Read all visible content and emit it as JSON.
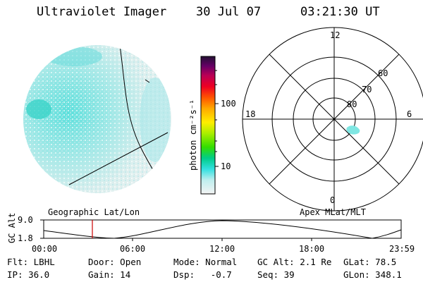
{
  "header": {
    "title": "Ultraviolet Imager",
    "date": "30 Jul 07",
    "time": "03:21:30 UT"
  },
  "colorbar": {
    "unit_label": "photon cm⁻²s⁻¹",
    "ticks": [
      "100",
      "10"
    ]
  },
  "polar": {
    "mlt_labels": [
      "12",
      "18",
      "6",
      "0"
    ],
    "lat_labels": [
      "60",
      "70",
      "80"
    ]
  },
  "map_labels": {
    "left": "Geographic Lat/Lon",
    "right": "Apex MLat/MLT"
  },
  "altitude_plot": {
    "axis_label": "GC Alt",
    "yticks": [
      "9.0",
      "1.8"
    ],
    "xticks": [
      "00:00",
      "06:00",
      "12:00",
      "18:00",
      "23:59"
    ]
  },
  "status": {
    "row1": [
      {
        "label": "Flt:",
        "value": "LBHL"
      },
      {
        "label": "Door:",
        "value": "Open"
      },
      {
        "label": "Mode:",
        "value": "Normal"
      },
      {
        "label": "GC Alt:",
        "value": "2.1 Re"
      },
      {
        "label": "GLat:",
        "value": "78.5"
      }
    ],
    "row2": [
      {
        "label": "IP:",
        "value": "36.0"
      },
      {
        "label": "Gain:",
        "value": "14"
      },
      {
        "label": "Dsp:",
        "value": "-0.7"
      },
      {
        "label": "Seq:",
        "value": "39"
      },
      {
        "label": "GLon:",
        "value": "348.1"
      }
    ]
  }
}
